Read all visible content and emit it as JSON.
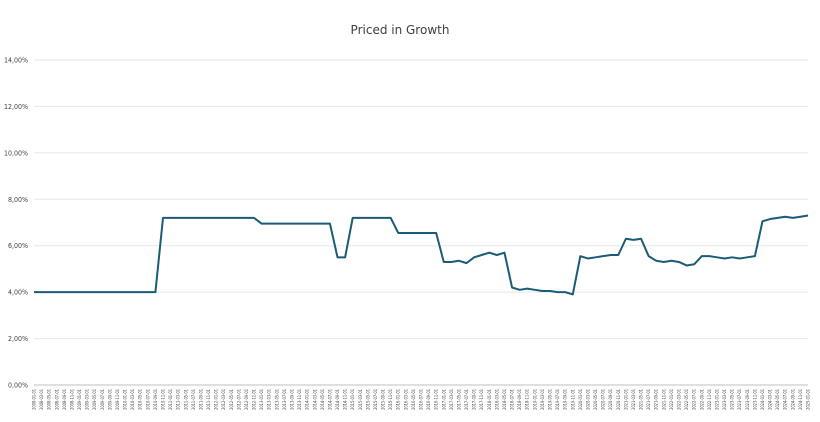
{
  "chart_data": {
    "type": "line",
    "title": "Priced in Growth",
    "xlabel": "",
    "ylabel": "",
    "ylim": [
      0,
      14
    ],
    "y_ticks": [
      "0,00%",
      "2,00%",
      "4,00%",
      "6,00%",
      "8,00%",
      "10,00%",
      "12,00%",
      "14,00%"
    ],
    "y_tick_values": [
      0,
      2,
      4,
      6,
      8,
      10,
      12,
      14
    ],
    "grid": true,
    "legend": "none",
    "x": [
      "2008-01-01",
      "2008-03-01",
      "2008-05-01",
      "2008-07-01",
      "2008-09-01",
      "2008-11-01",
      "2009-01-01",
      "2009-03-01",
      "2009-05-01",
      "2009-07-01",
      "2009-09-01",
      "2009-11-01",
      "2010-01-01",
      "2010-03-01",
      "2010-05-01",
      "2010-07-01",
      "2010-09-01",
      "2010-11-01",
      "2011-01-01",
      "2011-03-01",
      "2011-05-01",
      "2011-07-01",
      "2011-09-01",
      "2011-11-01",
      "2012-01-01",
      "2012-03-01",
      "2012-05-01",
      "2012-07-01",
      "2012-09-01",
      "2012-11-01",
      "2013-01-01",
      "2013-03-01",
      "2013-05-01",
      "2013-07-01",
      "2013-09-01",
      "2013-11-01",
      "2014-01-01",
      "2014-03-01",
      "2014-05-01",
      "2014-07-01",
      "2014-09-01",
      "2014-11-01",
      "2015-01-01",
      "2015-03-01",
      "2015-05-01",
      "2015-07-01",
      "2015-09-01",
      "2015-11-01",
      "2016-01-01",
      "2016-03-01",
      "2016-05-01",
      "2016-07-01",
      "2016-09-01",
      "2016-11-01",
      "2017-01-01",
      "2017-03-01",
      "2017-05-01",
      "2017-07-01",
      "2017-09-01",
      "2017-11-01",
      "2018-01-01",
      "2018-03-01",
      "2018-05-01",
      "2018-07-01",
      "2018-09-01",
      "2018-11-01",
      "2019-01-01",
      "2019-03-01",
      "2019-05-01",
      "2019-07-01",
      "2019-09-01",
      "2019-11-01",
      "2020-01-01",
      "2020-03-01",
      "2020-05-01",
      "2020-07-01",
      "2020-09-01",
      "2020-11-01",
      "2021-01-01",
      "2021-03-01",
      "2021-05-01",
      "2021-07-01",
      "2021-09-01",
      "2021-11-01",
      "2022-01-01",
      "2022-03-01",
      "2022-05-01",
      "2022-07-01",
      "2022-09-01",
      "2022-11-01",
      "2023-01-01",
      "2023-03-01",
      "2023-05-01",
      "2023-07-01",
      "2023-09-01",
      "2023-11-01",
      "2024-01-01",
      "2024-03-01",
      "2024-05-01",
      "2024-07-01",
      "2024-09-01",
      "2024-11-01",
      "2025-01-01"
    ],
    "series": [
      {
        "color": "#1b5b78",
        "values": [
          4.0,
          4.0,
          4.0,
          4.0,
          4.0,
          4.0,
          4.0,
          4.0,
          4.0,
          4.0,
          4.0,
          4.0,
          4.0,
          4.0,
          4.0,
          4.0,
          4.0,
          7.2,
          7.2,
          7.2,
          7.2,
          7.2,
          7.2,
          7.2,
          7.2,
          7.2,
          7.2,
          7.2,
          7.2,
          7.2,
          6.95,
          6.95,
          6.95,
          6.95,
          6.95,
          6.95,
          6.95,
          6.95,
          6.95,
          6.95,
          5.5,
          5.5,
          7.2,
          7.2,
          7.2,
          7.2,
          7.2,
          7.2,
          6.55,
          6.55,
          6.55,
          6.55,
          6.55,
          6.55,
          5.3,
          5.3,
          5.35,
          5.25,
          5.5,
          5.6,
          5.7,
          5.6,
          5.7,
          4.2,
          4.1,
          4.15,
          4.1,
          4.05,
          4.05,
          4.0,
          4.0,
          3.9,
          5.55,
          5.45,
          5.5,
          5.55,
          5.6,
          5.6,
          6.3,
          6.25,
          6.3,
          5.55,
          5.35,
          5.3,
          5.35,
          5.3,
          5.15,
          5.2,
          5.55,
          5.55,
          5.5,
          5.45,
          5.5,
          5.45,
          5.5,
          5.55,
          7.05,
          7.15,
          7.2,
          7.25,
          7.2,
          7.25,
          7.3
        ]
      }
    ],
    "x_value_count_note": ""
  }
}
